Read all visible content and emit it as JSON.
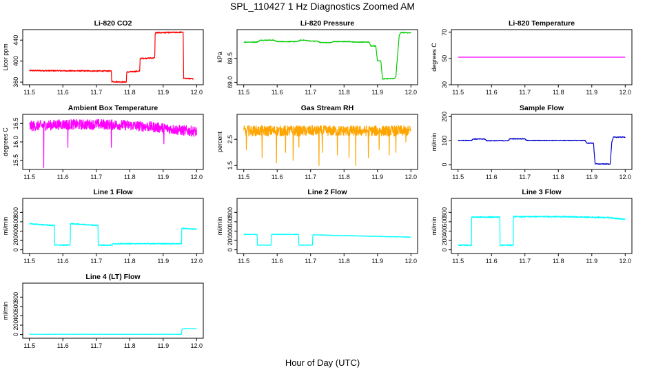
{
  "figure": {
    "title": "SPL_110427  1 Hz Diagnostics Zoomed AM",
    "xlabel": "Hour of Day (UTC)"
  },
  "chart_data": [
    {
      "type": "line",
      "title": "Li-820 CO2",
      "ylabel": "Licor ppm",
      "color": "#ff0000",
      "xlim": [
        11.48,
        12.02
      ],
      "ylim": [
        355,
        460
      ],
      "xticks": [
        11.5,
        11.6,
        11.7,
        11.8,
        11.9,
        12.0
      ],
      "xticklabels": [
        "11.5",
        "11.6",
        "11.7",
        "11.8",
        "11.9",
        "12.0"
      ],
      "yticks": [
        360,
        400,
        440
      ],
      "yticklabels": [
        "360",
        "400",
        "440"
      ],
      "noise": 1.2,
      "x": [
        11.5,
        11.745,
        11.746,
        11.79,
        11.791,
        11.83,
        11.831,
        11.875,
        11.876,
        11.96,
        11.961,
        11.97,
        11.99
      ],
      "y": [
        382,
        381,
        361,
        360,
        379,
        381,
        405,
        406,
        454,
        455,
        367,
        367,
        366
      ]
    },
    {
      "type": "line",
      "title": "Li-820 Pressure",
      "ylabel": "kPa",
      "color": "#00cc00",
      "xlim": [
        11.48,
        12.02
      ],
      "ylim": [
        68.95,
        70.1
      ],
      "xticks": [
        11.5,
        11.6,
        11.7,
        11.8,
        11.9,
        12.0
      ],
      "xticklabels": [
        "11.5",
        "11.6",
        "11.7",
        "11.8",
        "11.9",
        "12.0"
      ],
      "yticks": [
        69.0,
        69.5
      ],
      "yticklabels": [
        "69.0",
        "69.5"
      ],
      "noise": 0.008,
      "x": [
        11.5,
        11.54,
        11.55,
        11.59,
        11.6,
        11.66,
        11.67,
        11.68,
        11.7,
        11.72,
        11.73,
        11.76,
        11.77,
        11.82,
        11.83,
        11.875,
        11.88,
        11.895,
        11.9,
        11.91,
        11.915,
        11.95,
        11.955,
        11.965,
        11.97,
        12.0
      ],
      "y": [
        69.84,
        69.84,
        69.88,
        69.88,
        69.85,
        69.85,
        69.88,
        69.88,
        69.86,
        69.86,
        69.83,
        69.83,
        69.85,
        69.85,
        69.84,
        69.84,
        69.76,
        69.76,
        69.45,
        69.45,
        69.07,
        69.08,
        69.12,
        69.98,
        70.04,
        70.03
      ]
    },
    {
      "type": "line",
      "title": "Li-820 Temperature",
      "ylabel": "degrees C",
      "color": "#ff00ff",
      "xlim": [
        11.48,
        12.02
      ],
      "ylim": [
        30,
        72
      ],
      "xticks": [
        11.5,
        11.6,
        11.7,
        11.8,
        11.9,
        12.0
      ],
      "xticklabels": [
        "11.5",
        "11.6",
        "11.7",
        "11.8",
        "11.9",
        "12.0"
      ],
      "yticks": [
        30,
        50,
        70
      ],
      "yticklabels": [
        "30",
        "50",
        "70"
      ],
      "noise": 0,
      "x": [
        11.5,
        12.0
      ],
      "y": [
        51,
        51
      ]
    },
    {
      "type": "line",
      "title": "Ambient Box Temperature",
      "ylabel": "degrees C",
      "color": "#ff00ff",
      "xlim": [
        11.48,
        12.02
      ],
      "ylim": [
        15.25,
        16.75
      ],
      "xticks": [
        11.5,
        11.6,
        11.7,
        11.8,
        11.9,
        12.0
      ],
      "xticklabels": [
        "11.5",
        "11.6",
        "11.7",
        "11.8",
        "11.9",
        "12.0"
      ],
      "yticks": [
        15.5,
        16.0,
        16.5
      ],
      "yticklabels": [
        "15.5",
        "16.0",
        "16.5"
      ],
      "noise": 0.14,
      "spikes": [
        [
          11.543,
          15.3
        ],
        [
          11.615,
          15.85
        ],
        [
          11.745,
          15.85
        ],
        [
          11.902,
          15.95
        ]
      ],
      "x": [
        11.5,
        11.55,
        11.6,
        11.65,
        11.7,
        11.75,
        11.8,
        11.85,
        11.9,
        11.95,
        12.0
      ],
      "y": [
        16.43,
        16.45,
        16.48,
        16.47,
        16.48,
        16.47,
        16.45,
        16.42,
        16.38,
        16.32,
        16.28
      ]
    },
    {
      "type": "line",
      "title": "Gas Stream RH",
      "ylabel": "percent",
      "color": "#ffa500",
      "xlim": [
        11.48,
        12.02
      ],
      "ylim": [
        1.35,
        3.45
      ],
      "xticks": [
        11.5,
        11.6,
        11.7,
        11.8,
        11.9,
        12.0
      ],
      "xticklabels": [
        "11.5",
        "11.6",
        "11.7",
        "11.8",
        "11.9",
        "12.0"
      ],
      "yticks": [
        1.5,
        2.5
      ],
      "yticklabels": [
        "1.5",
        "2.5"
      ],
      "noise": 0.2,
      "spikes": [
        [
          11.508,
          2.1
        ],
        [
          11.555,
          1.8
        ],
        [
          11.598,
          1.6
        ],
        [
          11.625,
          2.0
        ],
        [
          11.648,
          1.7
        ],
        [
          11.665,
          2.2
        ],
        [
          11.725,
          1.5
        ],
        [
          11.735,
          2.0
        ],
        [
          11.78,
          1.9
        ],
        [
          11.815,
          1.8
        ],
        [
          11.835,
          1.5
        ],
        [
          11.873,
          1.8
        ],
        [
          11.905,
          2.1
        ],
        [
          11.935,
          1.9
        ],
        [
          11.955,
          2.0
        ],
        [
          11.985,
          2.4
        ]
      ],
      "x": [
        11.5,
        12.0
      ],
      "y": [
        2.82,
        2.82
      ]
    },
    {
      "type": "line",
      "title": "Sample Flow",
      "ylabel": "ml/min",
      "color": "#0000cc",
      "xlim": [
        11.48,
        12.02
      ],
      "ylim": [
        -20,
        210
      ],
      "xticks": [
        11.5,
        11.6,
        11.7,
        11.8,
        11.9,
        12.0
      ],
      "xticklabels": [
        "11.5",
        "11.6",
        "11.7",
        "11.8",
        "11.9",
        "12.0"
      ],
      "yticks": [
        0,
        100,
        200
      ],
      "yticklabels": [
        "0",
        "100",
        "200"
      ],
      "noise": 1.5,
      "x": [
        11.5,
        11.54,
        11.545,
        11.58,
        11.585,
        11.65,
        11.655,
        11.7,
        11.705,
        11.88,
        11.885,
        11.905,
        11.91,
        11.915,
        11.955,
        11.96,
        11.965,
        12.0
      ],
      "y": [
        101,
        101,
        107,
        107,
        100,
        100,
        108,
        108,
        101,
        101,
        90,
        90,
        4,
        3,
        3,
        95,
        115,
        115
      ]
    },
    {
      "type": "line",
      "title": "Line 1 Flow",
      "ylabel": "ml/min",
      "color": "#00ffff",
      "xlim": [
        11.48,
        12.02
      ],
      "ylim": [
        -80,
        1100
      ],
      "xticks": [
        11.5,
        11.6,
        11.7,
        11.8,
        11.9,
        12.0
      ],
      "xticklabels": [
        "11.5",
        "11.6",
        "11.7",
        "11.8",
        "11.9",
        "12.0"
      ],
      "yticks": [
        0,
        200,
        400,
        600,
        800
      ],
      "yticklabels": [
        "0",
        "200",
        "400",
        "600",
        "800"
      ],
      "noise": 12,
      "x": [
        11.5,
        11.575,
        11.5755,
        11.622,
        11.6225,
        11.705,
        11.7055,
        11.748,
        11.7485,
        11.955,
        11.9555,
        12.0
      ],
      "y": [
        555,
        520,
        100,
        100,
        560,
        520,
        100,
        100,
        130,
        130,
        460,
        440
      ]
    },
    {
      "type": "line",
      "title": "Line 2 Flow",
      "ylabel": "ml/min",
      "color": "#00ffff",
      "xlim": [
        11.48,
        12.02
      ],
      "ylim": [
        -80,
        1100
      ],
      "xticks": [
        11.5,
        11.6,
        11.7,
        11.8,
        11.9,
        12.0
      ],
      "xticklabels": [
        "11.5",
        "11.6",
        "11.7",
        "11.8",
        "11.9",
        "12.0"
      ],
      "yticks": [
        0,
        200,
        400,
        600,
        800
      ],
      "yticklabels": [
        "0",
        "200",
        "400",
        "600",
        "800"
      ],
      "noise": 6,
      "x": [
        11.5,
        11.54,
        11.5405,
        11.582,
        11.5825,
        11.664,
        11.6645,
        11.706,
        11.7065,
        12.0
      ],
      "y": [
        330,
        330,
        100,
        100,
        330,
        330,
        100,
        100,
        320,
        270
      ]
    },
    {
      "type": "line",
      "title": "Line 3 Flow",
      "ylabel": "ml/min",
      "color": "#00ffff",
      "xlim": [
        11.48,
        12.02
      ],
      "ylim": [
        -80,
        1100
      ],
      "xticks": [
        11.5,
        11.6,
        11.7,
        11.8,
        11.9,
        12.0
      ],
      "xticklabels": [
        "11.5",
        "11.6",
        "11.7",
        "11.8",
        "11.9",
        "12.0"
      ],
      "yticks": [
        0,
        200,
        400,
        600,
        800
      ],
      "yticklabels": [
        "0",
        "200",
        "400",
        "600",
        "800"
      ],
      "noise": 14,
      "x": [
        11.5,
        11.54,
        11.5405,
        11.625,
        11.6255,
        11.665,
        11.6655,
        11.8,
        11.95,
        12.0
      ],
      "y": [
        100,
        100,
        700,
        700,
        100,
        100,
        710,
        710,
        690,
        650
      ]
    },
    {
      "type": "line",
      "title": "Line 4 (LT) Flow",
      "ylabel": "ml/min",
      "color": "#00ffff",
      "xlim": [
        11.48,
        12.02
      ],
      "ylim": [
        -80,
        1100
      ],
      "xticks": [
        11.5,
        11.6,
        11.7,
        11.8,
        11.9,
        12.0
      ],
      "xticklabels": [
        "11.5",
        "11.6",
        "11.7",
        "11.8",
        "11.9",
        "12.0"
      ],
      "yticks": [
        0,
        200,
        400,
        600,
        800
      ],
      "yticklabels": [
        "0",
        "200",
        "400",
        "600",
        "800"
      ],
      "noise": 3,
      "x": [
        11.5,
        11.955,
        11.956,
        11.965,
        12.0
      ],
      "y": [
        5,
        5,
        110,
        130,
        125
      ]
    }
  ]
}
